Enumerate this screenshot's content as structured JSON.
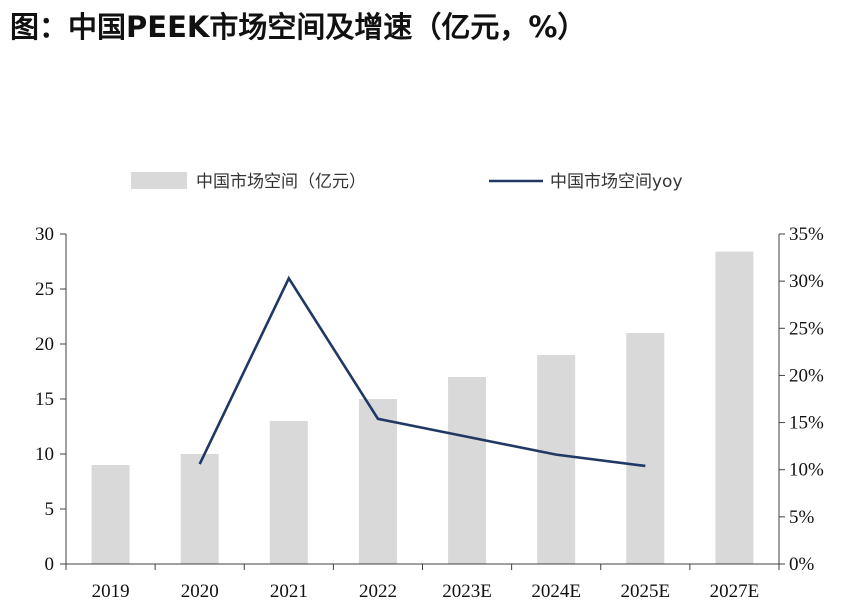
{
  "title": "图：中国PEEK市场空间及增速（亿元，%）",
  "chart_data": {
    "type": "bar+line",
    "categories": [
      "2019",
      "2020",
      "2021",
      "2022",
      "2023E",
      "2024E",
      "2025E",
      "2027E"
    ],
    "series": [
      {
        "name": "中国市场空间（亿元）",
        "type": "bar",
        "axis": "left",
        "color": "#d9d9d9",
        "values": [
          9,
          10,
          13,
          15,
          17,
          19,
          21,
          28.4
        ]
      },
      {
        "name": "中国市场空间yoy",
        "type": "line",
        "axis": "right",
        "color": "#1f3864",
        "values": [
          null,
          10.6,
          30.3,
          15.4,
          13.5,
          11.6,
          10.4,
          null
        ]
      }
    ],
    "y_left": {
      "ticks": [
        "0",
        "5",
        "10",
        "15",
        "20",
        "25",
        "30"
      ],
      "range": [
        0,
        30
      ]
    },
    "y_right": {
      "ticks": [
        "0%",
        "5%",
        "10%",
        "15%",
        "20%",
        "25%",
        "30%",
        "35%"
      ],
      "range": [
        0,
        35
      ]
    },
    "legend_position": "top"
  }
}
